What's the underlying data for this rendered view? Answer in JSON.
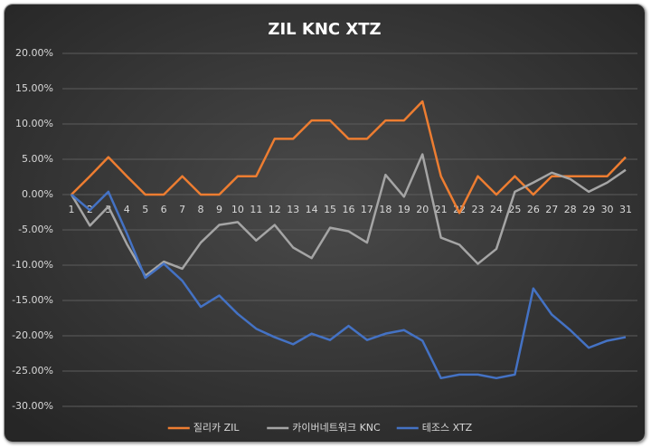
{
  "chart_data": {
    "type": "line",
    "title": "ZIL KNC XTZ",
    "categories": [
      "1",
      "2",
      "3",
      "4",
      "5",
      "6",
      "7",
      "8",
      "9",
      "10",
      "11",
      "12",
      "13",
      "14",
      "15",
      "16",
      "17",
      "18",
      "19",
      "20",
      "21",
      "22",
      "23",
      "24",
      "25",
      "26",
      "27",
      "28",
      "29",
      "30",
      "31"
    ],
    "series": [
      {
        "name": "질리카 ZIL",
        "color": "#ed7d31",
        "values": [
          0,
          2.6,
          5.3,
          2.6,
          0,
          0,
          2.6,
          0,
          0,
          2.6,
          2.6,
          7.9,
          7.9,
          10.5,
          10.5,
          7.9,
          7.9,
          10.5,
          10.5,
          13.2,
          2.6,
          -2.6,
          2.6,
          0,
          2.6,
          0,
          2.6,
          2.6,
          2.6,
          2.6,
          5.3
        ]
      },
      {
        "name": "카이버네트워크 KNC",
        "color": "#a5a5a5",
        "values": [
          0,
          -4.4,
          -1.7,
          -7,
          -11.5,
          -9.5,
          -10.5,
          -6.8,
          -4.3,
          -3.9,
          -6.5,
          -4.3,
          -7.5,
          -9,
          -4.7,
          -5.2,
          -6.8,
          2.8,
          -0.3,
          5.7,
          -6.1,
          -7.1,
          -9.8,
          -7.7,
          0.4,
          1.7,
          3.1,
          2.2,
          0.4,
          1.7,
          3.5
        ]
      },
      {
        "name": "테조스 XTZ",
        "color": "#4472c4",
        "values": [
          0,
          -2.2,
          0.4,
          -5.5,
          -11.8,
          -9.8,
          -12.2,
          -15.9,
          -14.3,
          -16.9,
          -19,
          -20.2,
          -21.2,
          -19.7,
          -20.6,
          -18.6,
          -20.6,
          -19.7,
          -19.2,
          -20.7,
          -26,
          -25.5,
          -25.5,
          -26,
          -25.5,
          -13.3,
          -17,
          -19.2,
          -21.7,
          -20.7,
          -20.2
        ]
      }
    ],
    "ylim": [
      -30,
      20
    ],
    "yticks": [
      {
        "value": -30,
        "label": "-30.00%"
      },
      {
        "value": -25,
        "label": "-25.00%"
      },
      {
        "value": -20,
        "label": "-20.00%"
      },
      {
        "value": -15,
        "label": "-15.00%"
      },
      {
        "value": -10,
        "label": "-10.00%"
      },
      {
        "value": -5,
        "label": "-5.00%"
      },
      {
        "value": 0,
        "label": "0.00%"
      },
      {
        "value": 5,
        "label": "5.00%"
      },
      {
        "value": 10,
        "label": "10.00%"
      },
      {
        "value": 15,
        "label": "15.00%"
      },
      {
        "value": 20,
        "label": "20.00%"
      }
    ],
    "grid": true,
    "legend": "bottom"
  }
}
